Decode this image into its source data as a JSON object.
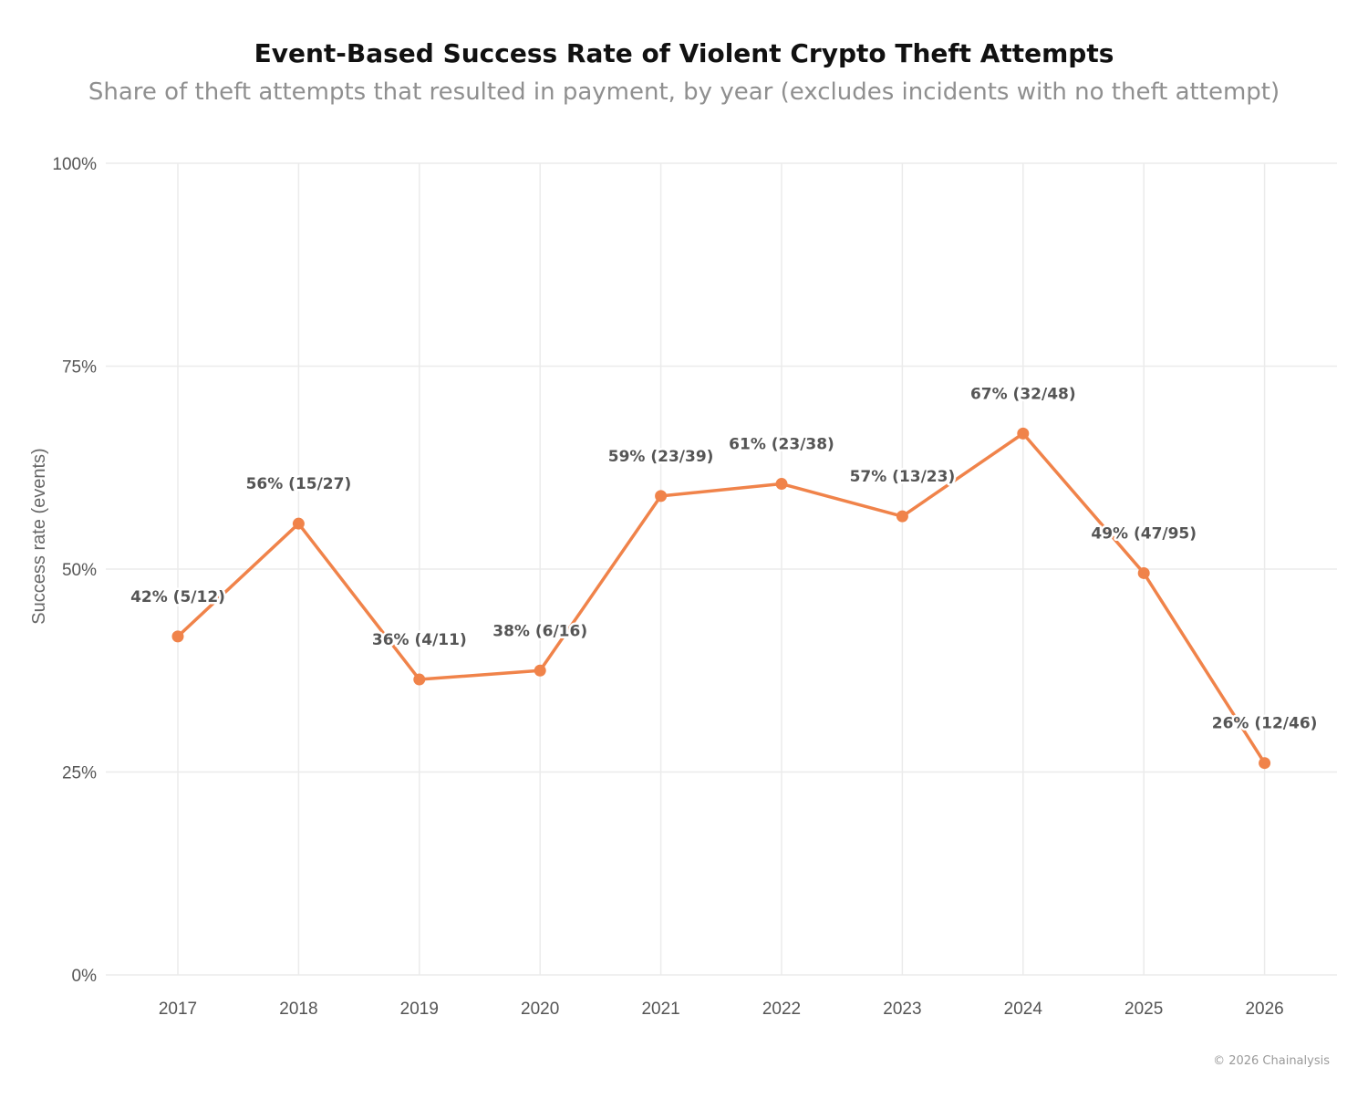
{
  "header": {
    "title": "Event-Based Success Rate of Violent Crypto Theft Attempts",
    "subtitle": "Share of theft attempts that resulted in payment, by year (excludes incidents with no theft attempt)"
  },
  "footer": {
    "copyright": "© 2026 Chainalysis"
  },
  "chart_data": {
    "type": "line",
    "title": "Event-Based Success Rate of Violent Crypto Theft Attempts",
    "subtitle": "Share of theft attempts that resulted in payment, by year (excludes incidents with no theft attempt)",
    "xlabel": "",
    "ylabel": "Success rate (events)",
    "categories": [
      "2017",
      "2018",
      "2019",
      "2020",
      "2021",
      "2022",
      "2023",
      "2024",
      "2025",
      "2026"
    ],
    "series": [
      {
        "values": [
          41.7,
          55.6,
          36.4,
          37.5,
          59.0,
          60.5,
          56.5,
          66.7,
          49.5,
          26.1
        ],
        "labels": [
          "42% (5/12)",
          "56% (15/27)",
          "36% (4/11)",
          "38% (6/16)",
          "59% (23/39)",
          "61% (23/38)",
          "57% (13/23)",
          "67% (32/48)",
          "49% (47/95)",
          "26% (12/46)"
        ],
        "color": "#f0834a"
      }
    ],
    "ylim": [
      0,
      100
    ],
    "yticks": [
      0,
      25,
      50,
      75,
      100
    ],
    "ytick_labels": [
      "0%",
      "25%",
      "50%",
      "75%",
      "100%"
    ],
    "grid": true,
    "legend": "none"
  }
}
